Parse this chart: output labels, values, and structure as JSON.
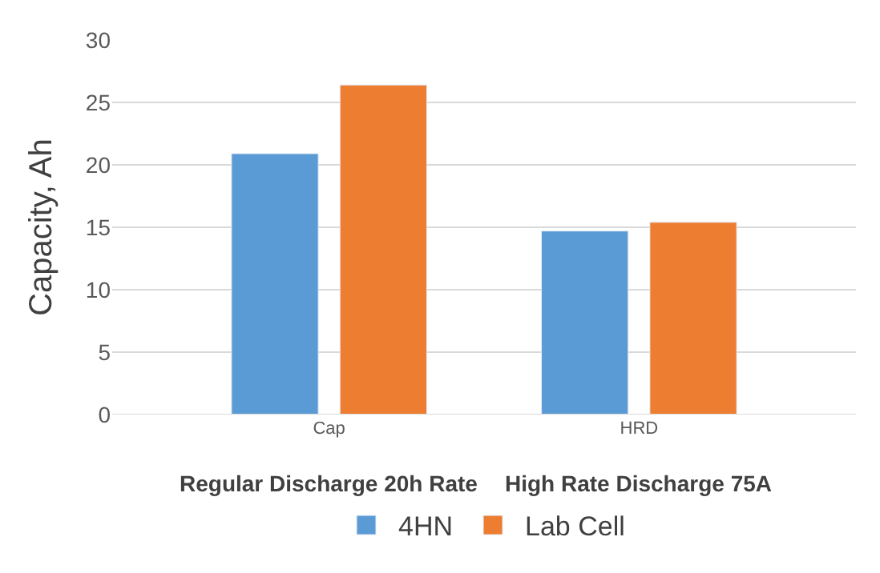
{
  "chart_data": {
    "type": "bar",
    "ylabel": "Capacity, Ah",
    "categories": [
      "Cap",
      "HRD"
    ],
    "series": [
      {
        "name": "4HN",
        "color": "#5b9bd5",
        "values": [
          20.9,
          14.7
        ]
      },
      {
        "name": "Lab Cell",
        "color": "#ed7d31",
        "values": [
          26.4,
          15.4
        ]
      }
    ],
    "ylim": [
      0,
      30
    ],
    "yticks": [
      0,
      5,
      10,
      15,
      20,
      25,
      30
    ],
    "grid": "y",
    "legend": "bottom",
    "annotations": [
      "Regular Discharge 20h Rate",
      "High Rate Discharge 75A"
    ]
  }
}
